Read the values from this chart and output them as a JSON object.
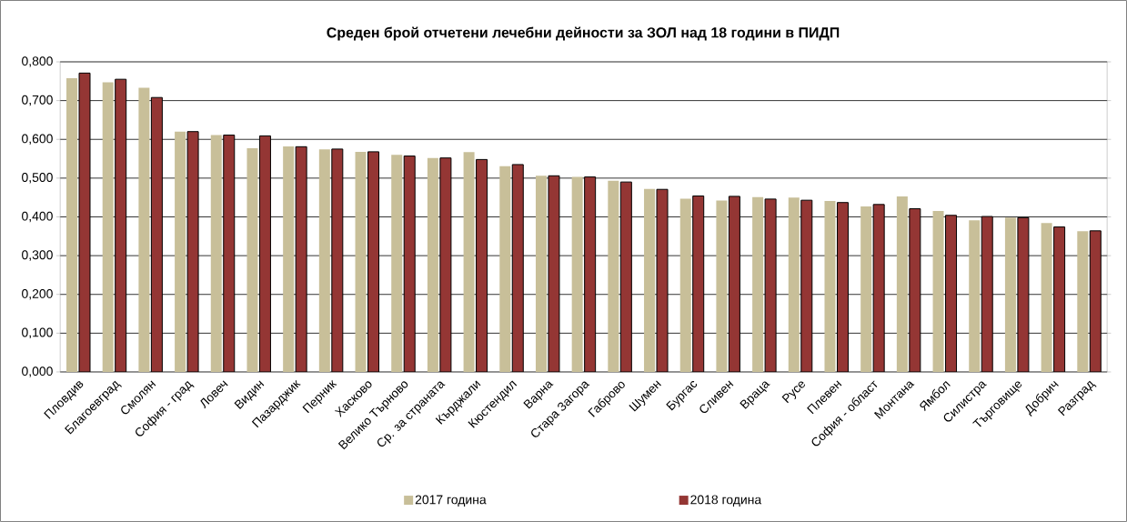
{
  "chart_data": {
    "type": "bar",
    "title": "Среден брой отчетени лечебни дейности за ЗОЛ над 18 години  в ПИДП",
    "categories": [
      "Пловдив",
      "Благоевград",
      "Смолян",
      "София - град",
      "Ловеч",
      "Видин",
      "Пазарджик",
      "Перник",
      "Хасково",
      "Велико Търново",
      "Ср. за страната",
      "Кърджали",
      "Кюстендил",
      "Варна",
      "Стара Загора",
      "Габрово",
      "Шумен",
      "Бургас",
      "Сливен",
      "Враца",
      "Русе",
      "Плевен",
      "София - област",
      "Монтана",
      "Ямбол",
      "Силистра",
      "Търговище",
      "Добрич",
      "Разград"
    ],
    "series": [
      {
        "name": "2017 година",
        "color": "#c8bf99",
        "values": [
          0.758,
          0.747,
          0.733,
          0.62,
          0.611,
          0.577,
          0.582,
          0.574,
          0.568,
          0.56,
          0.552,
          0.567,
          0.531,
          0.506,
          0.503,
          0.493,
          0.472,
          0.447,
          0.442,
          0.451,
          0.45,
          0.441,
          0.427,
          0.453,
          0.415,
          0.391,
          0.398,
          0.384,
          0.363
        ]
      },
      {
        "name": "2018 година",
        "color": "#943634",
        "values": [
          0.771,
          0.755,
          0.708,
          0.62,
          0.611,
          0.609,
          0.581,
          0.575,
          0.568,
          0.557,
          0.552,
          0.548,
          0.535,
          0.506,
          0.503,
          0.49,
          0.471,
          0.454,
          0.453,
          0.446,
          0.443,
          0.437,
          0.432,
          0.421,
          0.404,
          0.401,
          0.398,
          0.374,
          0.364
        ]
      }
    ],
    "ylim": [
      0,
      0.8
    ],
    "yticks": [
      {
        "value": 0,
        "label": "0,000"
      },
      {
        "value": 0.1,
        "label": "0,100"
      },
      {
        "value": 0.2,
        "label": "0,200"
      },
      {
        "value": 0.3,
        "label": "0,300"
      },
      {
        "value": 0.4,
        "label": "0,400"
      },
      {
        "value": 0.5,
        "label": "0,500"
      },
      {
        "value": 0.6,
        "label": "0,600"
      },
      {
        "value": 0.7,
        "label": "0,700"
      },
      {
        "value": 0.8,
        "label": "0,800"
      }
    ],
    "grid": "y",
    "legend": "bottom"
  }
}
